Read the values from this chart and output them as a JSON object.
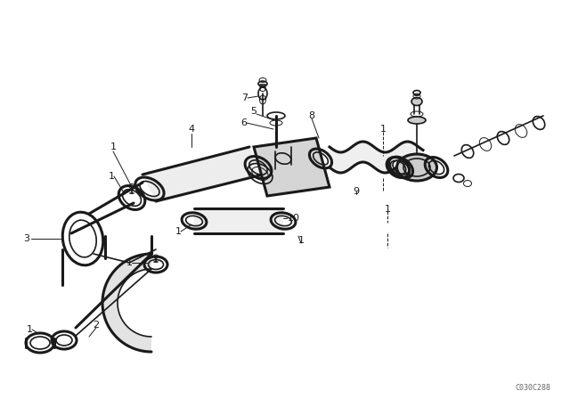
{
  "bg_color": "#ffffff",
  "line_color": "#1a1a1a",
  "text_color": "#1a1a1a",
  "diagram_code": "C030C288",
  "figsize": [
    6.4,
    4.48
  ],
  "dpi": 100,
  "lw_main": 1.2,
  "lw_thick": 2.2,
  "lw_thin": 0.7
}
